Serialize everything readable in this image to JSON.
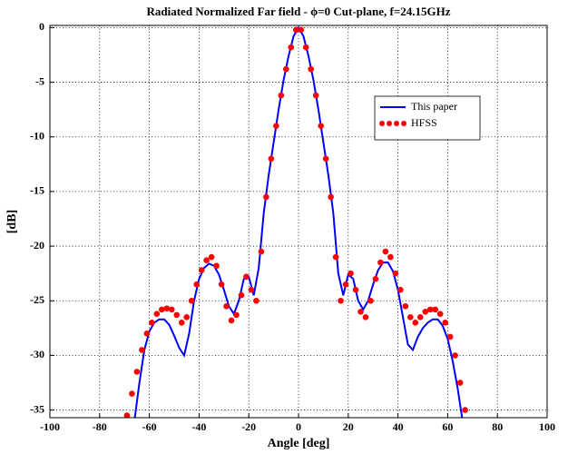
{
  "chart_data": {
    "type": "line",
    "title": "Radiated Normalized Far field - ϕ=0 Cut-plane, f=24.15GHz",
    "x_label": "Angle [deg]",
    "y_label": "[dB]",
    "xlim": [
      -100,
      100
    ],
    "ylim": [
      -35.7,
      0.2
    ],
    "xticks": [
      -100,
      -80,
      -60,
      -40,
      -20,
      0,
      20,
      40,
      60,
      80,
      100
    ],
    "yticks": [
      0,
      -5,
      -10,
      -15,
      -20,
      -25,
      -30,
      -35
    ],
    "grid": true,
    "legend": "upper right",
    "series": [
      {
        "name": "This paper",
        "color": "#0000ff",
        "style": "solid",
        "x": [
          -66,
          -64,
          -62,
          -60,
          -58,
          -56,
          -54,
          -52,
          -50,
          -48,
          -46,
          -44,
          -42,
          -40,
          -38,
          -36,
          -34,
          -32,
          -30,
          -28,
          -26,
          -24,
          -22,
          -20,
          -18,
          -16,
          -14,
          -12,
          -10,
          -8,
          -6,
          -4,
          -2,
          0,
          2,
          4,
          6,
          8,
          10,
          12,
          14,
          16,
          18,
          20,
          22,
          24,
          26,
          28,
          30,
          32,
          34,
          36,
          38,
          40,
          42,
          44,
          46,
          48,
          50,
          52,
          54,
          56,
          58,
          60,
          62,
          64,
          66
        ],
        "values": [
          -36,
          -32.5,
          -29.5,
          -27.8,
          -27,
          -26.7,
          -26.7,
          -27.2,
          -28.2,
          -29.3,
          -30,
          -28,
          -25,
          -23,
          -22,
          -21.6,
          -21.8,
          -22.6,
          -24,
          -25.5,
          -26.2,
          -25,
          -23,
          -22.8,
          -24.5,
          -22,
          -17,
          -13.5,
          -10.5,
          -7.5,
          -4.8,
          -2.6,
          -0.8,
          0,
          -0.8,
          -2.6,
          -4.8,
          -7.5,
          -10.5,
          -13.5,
          -17,
          -22.5,
          -24.5,
          -22.6,
          -23,
          -25,
          -25.8,
          -25,
          -23.5,
          -22.2,
          -21.5,
          -21.5,
          -22.3,
          -24,
          -26.5,
          -29,
          -29.5,
          -28.3,
          -27.5,
          -27,
          -26.7,
          -26.7,
          -27.3,
          -28.5,
          -30.5,
          -33,
          -36
        ]
      },
      {
        "name": "HFSS",
        "color": "#ff0000",
        "style": "dots",
        "x": [
          -69,
          -67,
          -65,
          -63,
          -61,
          -59,
          -57,
          -55,
          -53,
          -51,
          -49,
          -47,
          -45,
          -43,
          -41,
          -39,
          -37,
          -35,
          -33,
          -31,
          -29,
          -27,
          -25,
          -23,
          -21,
          -19,
          -17,
          -15,
          -13,
          -11,
          -9,
          -7,
          -5,
          -3,
          -1,
          1,
          3,
          5,
          7,
          9,
          11,
          13,
          15,
          17,
          19,
          21,
          23,
          25,
          27,
          29,
          31,
          33,
          35,
          37,
          39,
          41,
          43,
          45,
          47,
          49,
          51,
          53,
          55,
          57,
          59,
          61,
          63,
          65,
          67
        ],
        "values": [
          -35.5,
          -33.5,
          -31.5,
          -29.5,
          -28,
          -27,
          -26.2,
          -25.8,
          -25.7,
          -25.8,
          -26.3,
          -27,
          -26.5,
          -25,
          -23.5,
          -22.2,
          -21.3,
          -21,
          -21.8,
          -23.5,
          -25.5,
          -26.8,
          -26.3,
          -24.5,
          -22.8,
          -24,
          -25,
          -20.5,
          -15.5,
          -12,
          -9,
          -6.2,
          -3.8,
          -1.8,
          -0.2,
          -0.2,
          -1.8,
          -3.8,
          -6.2,
          -9,
          -12,
          -15.5,
          -21,
          -25,
          -23.5,
          -22.5,
          -24,
          -26,
          -26.5,
          -25,
          -23,
          -21.5,
          -20.5,
          -21,
          -22.5,
          -24,
          -25.5,
          -26.5,
          -27,
          -26.5,
          -26,
          -25.8,
          -25.8,
          -26.2,
          -27,
          -28.3,
          -30,
          -32.5,
          -35
        ]
      }
    ]
  }
}
